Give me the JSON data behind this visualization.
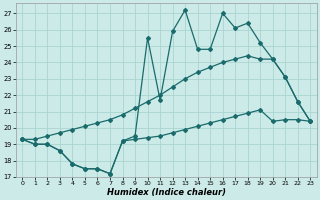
{
  "xlabel": "Humidex (Indice chaleur)",
  "background_color": "#cceae8",
  "grid_color": "#aad4d0",
  "line_color": "#1a6b6b",
  "xlim": [
    -0.5,
    23.5
  ],
  "ylim": [
    17,
    27.6
  ],
  "yticks": [
    17,
    18,
    19,
    20,
    21,
    22,
    23,
    24,
    25,
    26,
    27
  ],
  "xticks": [
    0,
    1,
    2,
    3,
    4,
    5,
    6,
    7,
    8,
    9,
    10,
    11,
    12,
    13,
    14,
    15,
    16,
    17,
    18,
    19,
    20,
    21,
    22,
    23
  ],
  "series1_x": [
    0,
    1,
    2,
    3,
    4,
    5,
    6,
    7,
    8,
    9,
    10,
    11,
    12,
    13,
    14,
    15,
    16,
    17,
    18,
    19,
    20,
    21,
    22,
    23
  ],
  "series1_y": [
    19.3,
    19.0,
    19.0,
    18.6,
    17.8,
    17.5,
    17.5,
    17.2,
    19.2,
    19.3,
    19.4,
    19.5,
    19.7,
    19.9,
    20.1,
    20.3,
    20.5,
    20.7,
    20.9,
    21.1,
    20.4,
    20.5,
    20.5,
    20.4
  ],
  "series2_x": [
    0,
    1,
    2,
    3,
    4,
    5,
    6,
    7,
    8,
    9,
    10,
    11,
    12,
    13,
    14,
    15,
    16,
    17,
    18,
    19,
    20,
    21,
    22,
    23
  ],
  "series2_y": [
    19.3,
    19.0,
    19.0,
    18.6,
    17.8,
    17.5,
    17.5,
    17.2,
    19.2,
    19.5,
    25.5,
    21.7,
    25.9,
    27.2,
    24.8,
    24.8,
    27.0,
    26.1,
    26.4,
    25.2,
    24.2,
    23.1,
    21.6,
    20.4
  ],
  "series3_x": [
    0,
    1,
    2,
    3,
    4,
    5,
    6,
    7,
    8,
    9,
    10,
    11,
    12,
    13,
    14,
    15,
    16,
    17,
    18,
    19,
    20,
    21,
    22,
    23
  ],
  "series3_y": [
    19.3,
    19.3,
    19.5,
    19.7,
    19.9,
    20.1,
    20.3,
    20.5,
    20.8,
    21.2,
    21.6,
    22.0,
    22.5,
    23.0,
    23.4,
    23.7,
    24.0,
    24.2,
    24.4,
    24.2,
    24.2,
    23.1,
    21.6,
    20.4
  ]
}
